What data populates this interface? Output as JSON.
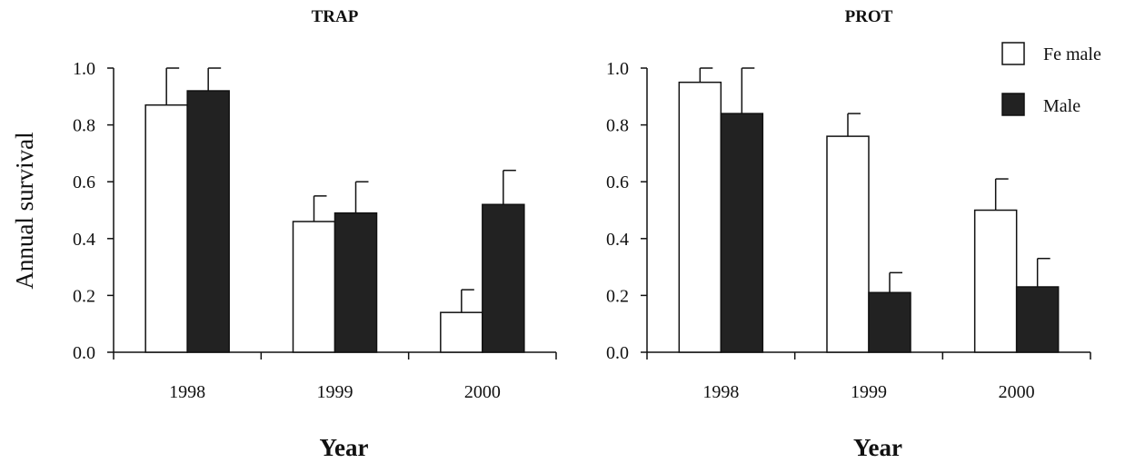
{
  "chart_data": [
    {
      "type": "bar",
      "title": "TRAP",
      "xlabel": "Year",
      "ylabel": "Annual survival",
      "categories": [
        "1998",
        "1999",
        "2000"
      ],
      "ylim": [
        0,
        1
      ],
      "yticks": [
        "0.0",
        "0.2",
        "0.4",
        "0.6",
        "0.8",
        "1.0"
      ],
      "series": [
        {
          "name": "Female",
          "color": "#ffffff",
          "values": [
            0.87,
            0.46,
            0.14
          ],
          "error_upper": [
            1.0,
            0.55,
            0.22
          ]
        },
        {
          "name": "Male",
          "color": "#222222",
          "values": [
            0.92,
            0.49,
            0.52
          ],
          "error_upper": [
            1.0,
            0.6,
            0.64
          ]
        }
      ]
    },
    {
      "type": "bar",
      "title": "PROT",
      "xlabel": "Year",
      "ylabel": "",
      "categories": [
        "1998",
        "1999",
        "2000"
      ],
      "ylim": [
        0,
        1
      ],
      "yticks": [
        "0.0",
        "0.2",
        "0.4",
        "0.6",
        "0.8",
        "1.0"
      ],
      "series": [
        {
          "name": "Female",
          "color": "#ffffff",
          "values": [
            0.95,
            0.76,
            0.5
          ],
          "error_upper": [
            1.0,
            0.84,
            0.61
          ]
        },
        {
          "name": "Male",
          "color": "#222222",
          "values": [
            0.84,
            0.21,
            0.23
          ],
          "error_upper": [
            1.0,
            0.28,
            0.33
          ]
        }
      ]
    }
  ],
  "legend": {
    "position": "top-right",
    "items": [
      {
        "label": "Fe male",
        "color": "#ffffff"
      },
      {
        "label": "Male",
        "color": "#222222"
      }
    ]
  }
}
